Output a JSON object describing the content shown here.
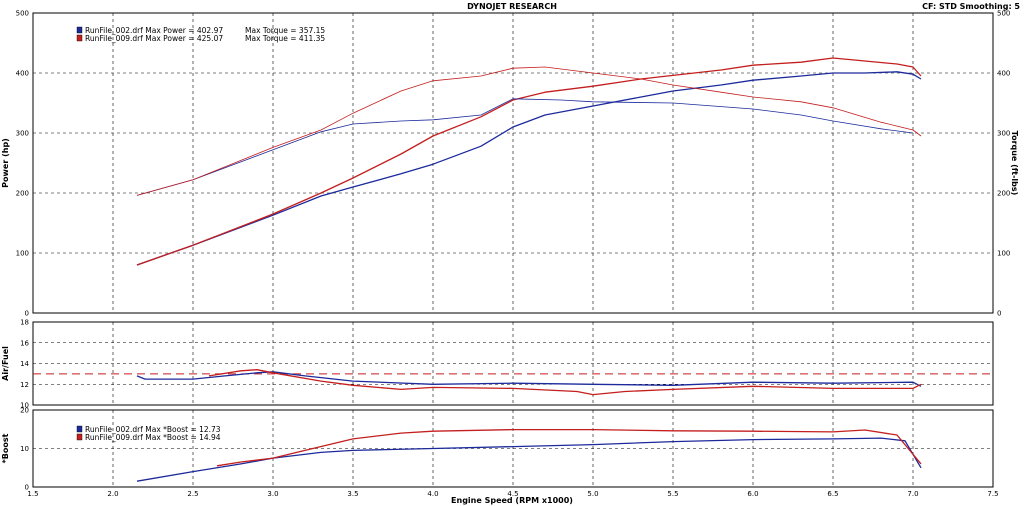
{
  "header": {
    "title": "DYNOJET RESEARCH",
    "status": "CF: STD  Smoothing: 5"
  },
  "colors": {
    "run1": "#1c2a9c",
    "run2": "#c41e1e",
    "afr_ref": "#c41e1e",
    "grid": "#000000",
    "background": "#ffffff"
  },
  "chart_data": [
    {
      "type": "line",
      "panel": "power_torque",
      "xlabel": "Engine Speed (RPM x1000)",
      "ylabel": "Power (hp)",
      "y2label": "Torque (ft-lbs)",
      "xlim": [
        1.5,
        7.5
      ],
      "ylim": [
        0,
        500
      ],
      "y2lim": [
        0,
        500
      ],
      "x_ticks": [
        "1.5",
        "2.0",
        "2.5",
        "3.0",
        "3.5",
        "4.0",
        "4.5",
        "5.0",
        "5.5",
        "6.0",
        "6.5",
        "7.0",
        "7.5"
      ],
      "y_ticks": [
        "0",
        "100",
        "200",
        "300",
        "400",
        "500"
      ],
      "y2_ticks": [
        "0",
        "100",
        "200",
        "300",
        "400",
        "500"
      ],
      "grid": true,
      "legend": {
        "placement": "top-left",
        "entries": [
          {
            "file": "RunFile_002.drf",
            "max_power_label": "Max Power = 402.97",
            "max_torque_label": "Max Torque = 357.15"
          },
          {
            "file": "RunFile_009.drf",
            "max_power_label": "Max Power = 425.07",
            "max_torque_label": "Max Torque = 411.35"
          }
        ]
      },
      "series": [
        {
          "name": "RunFile_002.drf",
          "quantity": "Power",
          "color": "#1c2a9c",
          "style": "solid",
          "x": [
            2.15,
            2.5,
            3.0,
            3.3,
            3.5,
            3.8,
            4.0,
            4.3,
            4.5,
            4.7,
            5.0,
            5.3,
            5.5,
            5.8,
            6.0,
            6.3,
            6.5,
            6.7,
            6.9,
            7.0,
            7.05
          ],
          "y": [
            80,
            113,
            163,
            195,
            210,
            232,
            248,
            278,
            310,
            330,
            345,
            360,
            370,
            380,
            388,
            395,
            400,
            400,
            402,
            398,
            390
          ]
        },
        {
          "name": "RunFile_009.drf",
          "quantity": "Power",
          "color": "#c41e1e",
          "style": "solid",
          "x": [
            2.15,
            2.5,
            3.0,
            3.3,
            3.5,
            3.8,
            4.0,
            4.3,
            4.5,
            4.7,
            5.0,
            5.3,
            5.5,
            5.8,
            6.0,
            6.3,
            6.5,
            6.7,
            6.9,
            7.0,
            7.05
          ],
          "y": [
            80,
            113,
            165,
            200,
            225,
            265,
            295,
            327,
            355,
            368,
            378,
            390,
            396,
            405,
            413,
            418,
            425,
            420,
            415,
            410,
            395
          ]
        },
        {
          "name": "RunFile_002.drf",
          "quantity": "Torque",
          "color": "#1c2a9c",
          "style": "thin",
          "x": [
            2.15,
            2.5,
            3.0,
            3.3,
            3.5,
            3.8,
            4.0,
            4.3,
            4.5,
            4.8,
            5.0,
            5.5,
            6.0,
            6.3,
            6.5,
            6.8,
            7.0
          ],
          "y": [
            196,
            222,
            272,
            302,
            315,
            320,
            322,
            330,
            357,
            355,
            352,
            350,
            340,
            330,
            320,
            307,
            300
          ]
        },
        {
          "name": "RunFile_009.drf",
          "quantity": "Torque",
          "color": "#c41e1e",
          "style": "thin",
          "x": [
            2.15,
            2.5,
            3.0,
            3.3,
            3.5,
            3.8,
            4.0,
            4.3,
            4.5,
            4.7,
            5.0,
            5.3,
            5.5,
            5.8,
            6.0,
            6.3,
            6.5,
            6.8,
            7.0,
            7.05
          ],
          "y": [
            196,
            222,
            276,
            305,
            333,
            370,
            387,
            395,
            408,
            410,
            400,
            390,
            380,
            368,
            360,
            352,
            342,
            318,
            305,
            295
          ]
        }
      ]
    },
    {
      "type": "line",
      "panel": "air_fuel",
      "ylabel": "Air/Fuel",
      "xlim": [
        1.5,
        7.5
      ],
      "ylim": [
        10,
        18
      ],
      "y_ticks": [
        "10",
        "12",
        "14",
        "16",
        "18"
      ],
      "grid": true,
      "reference_line": {
        "y": 13.0,
        "style": "dashed",
        "color": "#c41e1e"
      },
      "series": [
        {
          "name": "RunFile_002.drf",
          "color": "#1c2a9c",
          "x": [
            2.15,
            2.2,
            2.5,
            2.7,
            2.9,
            3.0,
            3.2,
            3.5,
            4.0,
            4.5,
            5.0,
            5.5,
            6.0,
            6.5,
            7.0,
            7.05
          ],
          "y": [
            12.8,
            12.5,
            12.5,
            12.8,
            13.1,
            13.2,
            12.8,
            12.3,
            12.0,
            12.1,
            12.0,
            11.9,
            12.2,
            12.1,
            12.2,
            11.8
          ]
        },
        {
          "name": "RunFile_009.drf",
          "color": "#c41e1e",
          "x": [
            2.6,
            2.8,
            2.9,
            3.0,
            3.3,
            3.5,
            3.8,
            4.0,
            4.5,
            4.9,
            5.0,
            5.2,
            5.5,
            6.0,
            6.5,
            7.0,
            7.05
          ],
          "y": [
            12.8,
            13.3,
            13.4,
            13.1,
            12.3,
            11.9,
            11.5,
            11.7,
            11.6,
            11.3,
            11.0,
            11.3,
            11.5,
            11.8,
            11.6,
            11.6,
            12.0
          ]
        }
      ]
    },
    {
      "type": "line",
      "panel": "boost",
      "ylabel": "*Boost",
      "xlim": [
        1.5,
        7.5
      ],
      "ylim": [
        0,
        20
      ],
      "y_ticks": [
        "0",
        "10",
        "20"
      ],
      "grid": true,
      "legend": {
        "placement": "top-left",
        "entries": [
          {
            "file": "RunFile_002.drf",
            "max_boost_label": "Max *Boost = 12.73"
          },
          {
            "file": "RunFile_009.drf",
            "max_boost_label": "Max *Boost = 14.94"
          }
        ]
      },
      "series": [
        {
          "name": "RunFile_002.drf",
          "color": "#1c2a9c",
          "x": [
            2.15,
            2.5,
            2.8,
            3.0,
            3.3,
            3.5,
            4.0,
            4.5,
            5.0,
            5.5,
            6.0,
            6.5,
            6.8,
            6.95,
            7.05
          ],
          "y": [
            1.5,
            4.0,
            6.0,
            7.5,
            9.0,
            9.5,
            10.0,
            10.5,
            11.0,
            11.8,
            12.3,
            12.5,
            12.7,
            12.0,
            5.0
          ]
        },
        {
          "name": "RunFile_009.drf",
          "color": "#c41e1e",
          "x": [
            2.65,
            2.8,
            3.0,
            3.2,
            3.5,
            3.8,
            4.0,
            4.5,
            5.0,
            5.5,
            6.0,
            6.5,
            6.7,
            6.9,
            7.05
          ],
          "y": [
            5.5,
            6.5,
            7.5,
            9.5,
            12.5,
            14.0,
            14.5,
            14.9,
            14.9,
            14.6,
            14.5,
            14.3,
            14.8,
            13.5,
            6.0
          ]
        }
      ]
    }
  ]
}
